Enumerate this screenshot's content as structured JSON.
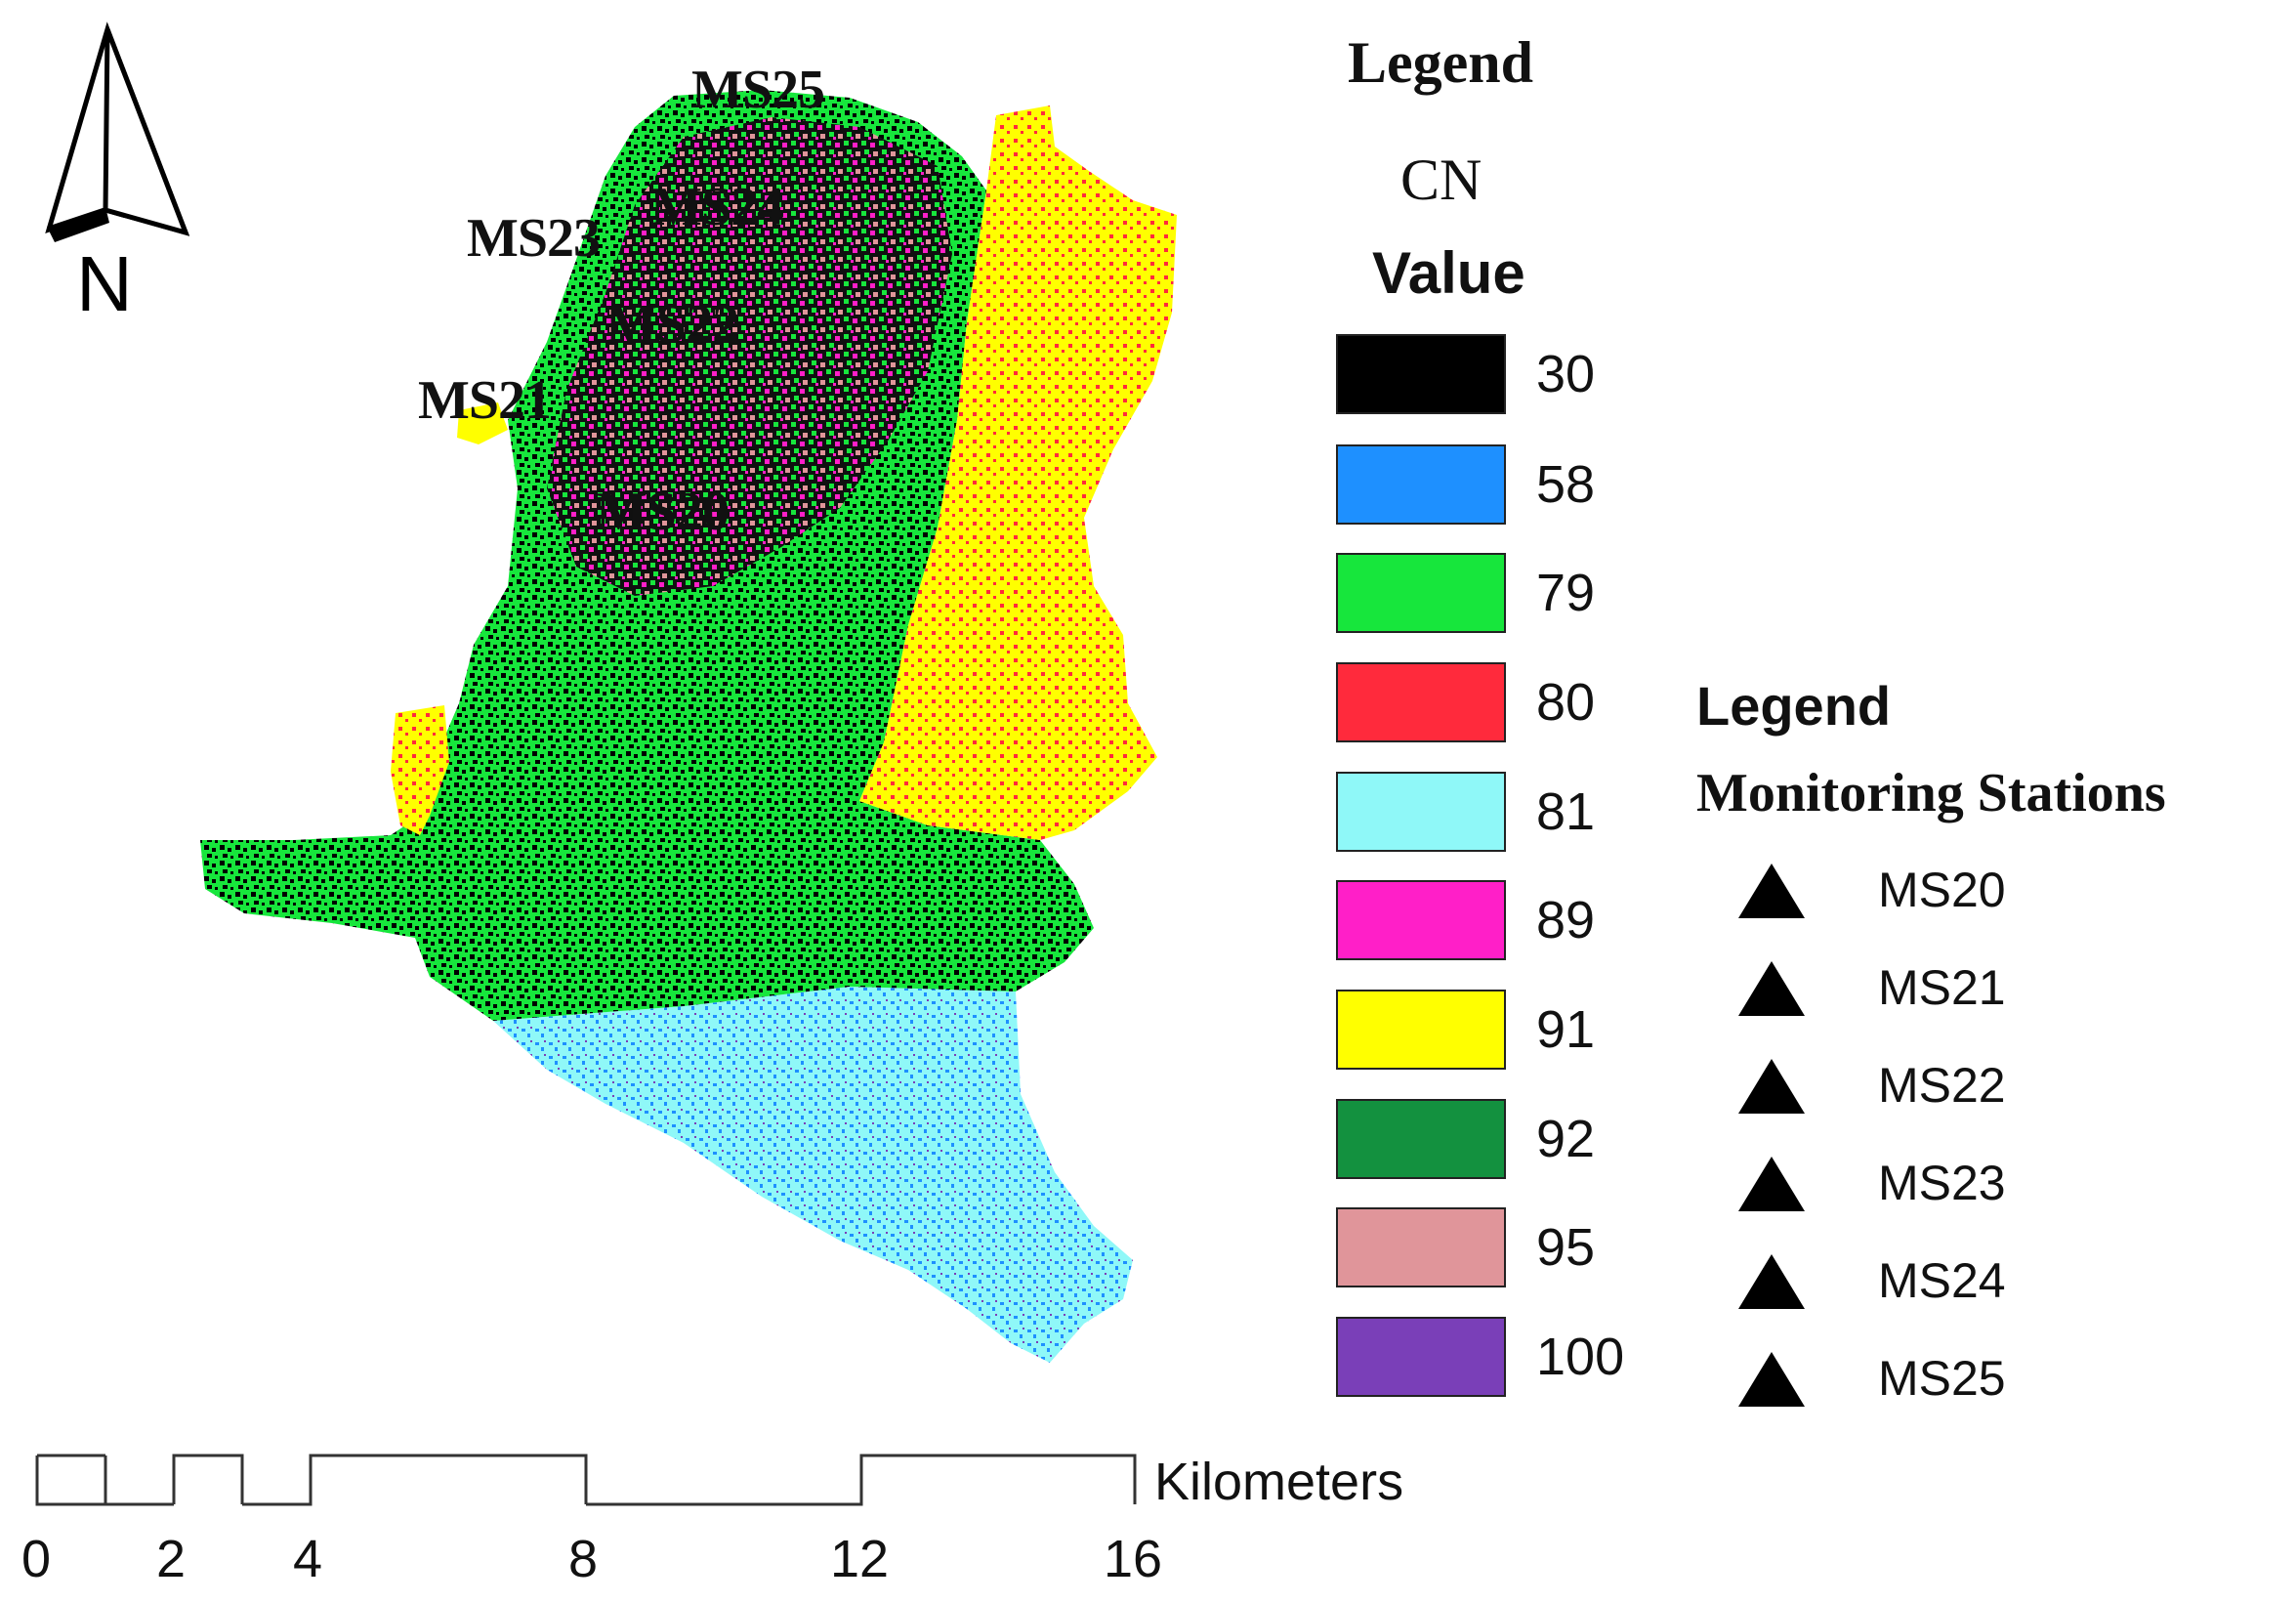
{
  "north_arrow": {
    "label": "N"
  },
  "cn_legend": {
    "title": "Legend",
    "subtitle": "CN",
    "heading": "Value",
    "items": [
      {
        "value": "30",
        "color": "#000000"
      },
      {
        "value": "58",
        "color": "#1e90ff"
      },
      {
        "value": "79",
        "color": "#17e63c"
      },
      {
        "value": "80",
        "color": "#ff2a3c"
      },
      {
        "value": "81",
        "color": "#8ff8f8"
      },
      {
        "value": "89",
        "color": "#ff1fc8"
      },
      {
        "value": "91",
        "color": "#ffff00"
      },
      {
        "value": "92",
        "color": "#13913f"
      },
      {
        "value": "95",
        "color": "#e0959a"
      },
      {
        "value": "100",
        "color": "#7a3fb8"
      }
    ]
  },
  "stations_legend": {
    "title": "Legend",
    "heading": "Monitoring Stations",
    "items": [
      "MS20",
      "MS21",
      "MS22",
      "MS23",
      "MS24",
      "MS25"
    ]
  },
  "map_labels": {
    "ms25": "MS25",
    "ms24": "MS24",
    "ms23": "MS23",
    "ms22": "MS22",
    "ms21": "MS21",
    "ms20": "MS20"
  },
  "scale_bar": {
    "unit": "Kilometers",
    "ticks": [
      "0",
      "2",
      "4",
      "8",
      "12",
      "16"
    ]
  }
}
